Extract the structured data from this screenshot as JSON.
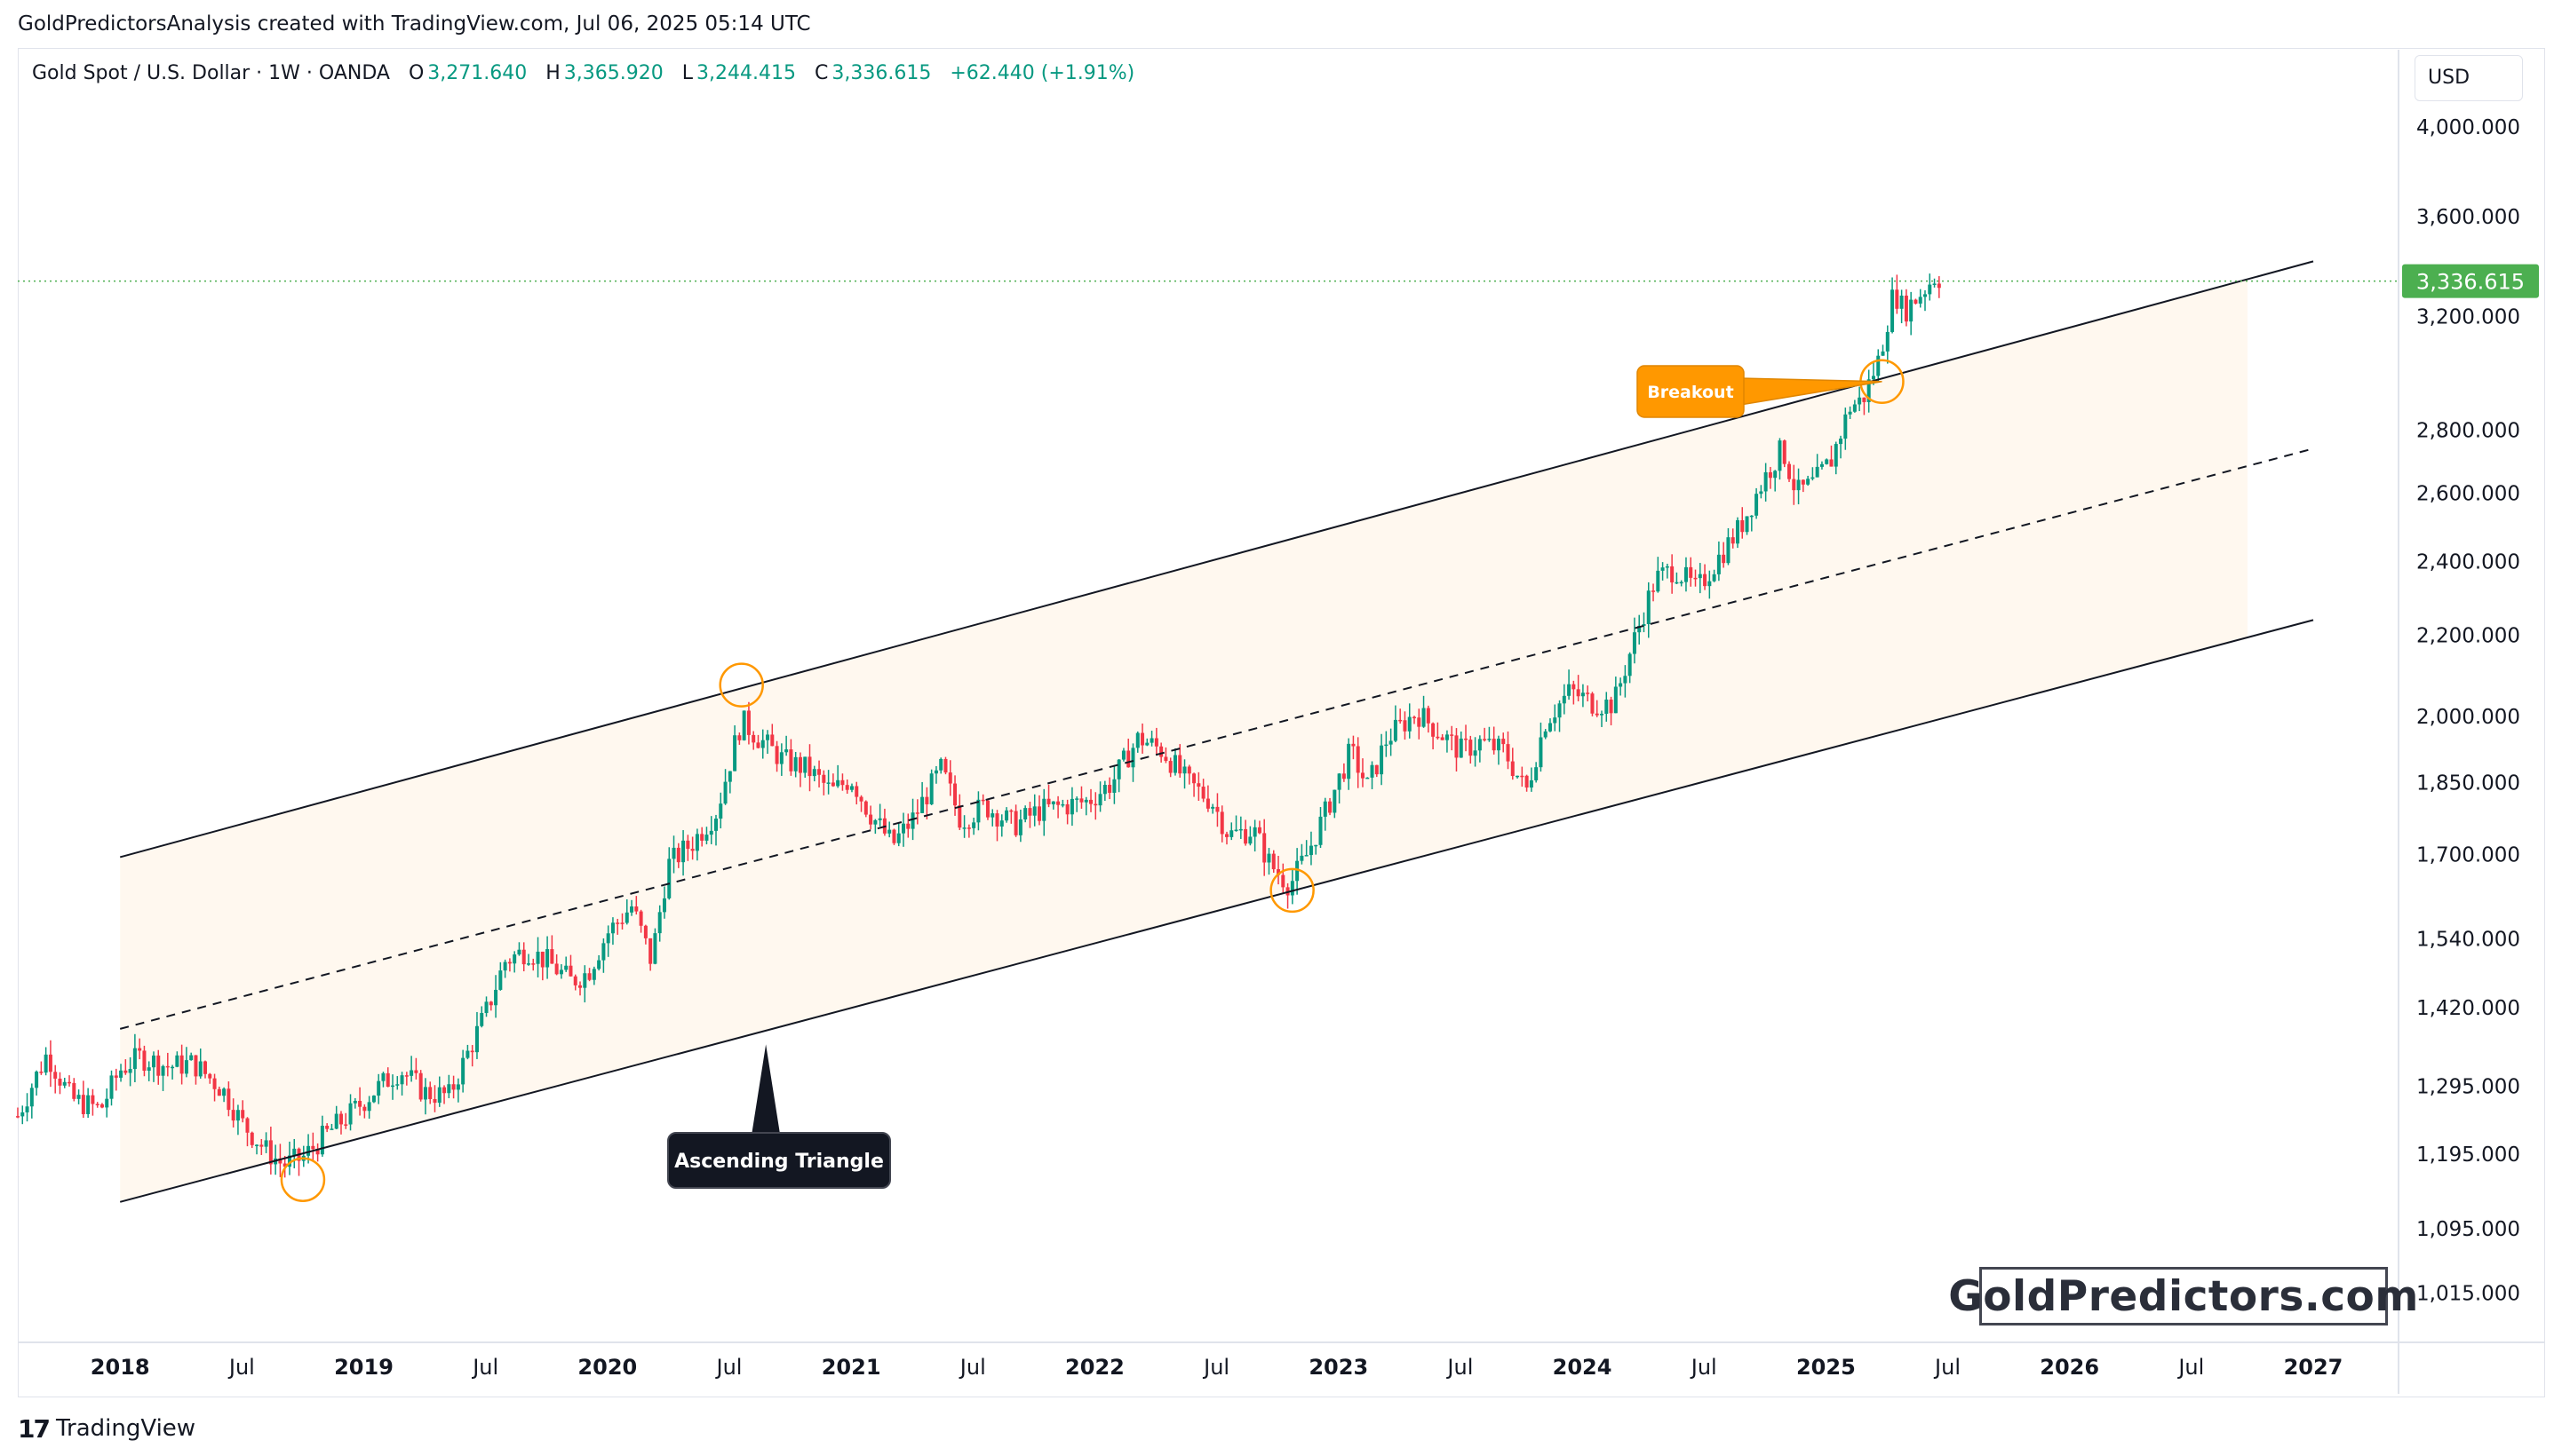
{
  "header": {
    "caption": "GoldPredictorsAnalysis created with TradingView.com, Jul 06, 2025 05:14 UTC"
  },
  "legend": {
    "symbol": "Gold Spot / U.S. Dollar · 1W · OANDA",
    "open_label": "O",
    "open": "3,271.640",
    "high_label": "H",
    "high": "3,365.920",
    "low_label": "L",
    "low": "3,244.415",
    "close_label": "C",
    "close": "3,336.615",
    "change": "+62.440 (+1.91%)"
  },
  "price_axis": {
    "currency": "USD",
    "current_price_label": "3,336.615",
    "current_price": 3336.615,
    "current_price_color": "#4caf50"
  },
  "brand": {
    "footer": "TradingView",
    "watermark": "GoldPredictors.com"
  },
  "colors": {
    "up": "#089981",
    "down": "#f23645",
    "channel_fill": "#fff8ef",
    "circle": "#ff9800",
    "breakout": "#ff9800",
    "triangle_label": "#131722"
  },
  "chart_data": {
    "type": "candlestick",
    "title": "",
    "y_scale": "log",
    "ylim": [
      960,
      4380
    ],
    "xlim": [
      2017.58,
      2027.35
    ],
    "y_ticks": [
      {
        "value": 4000,
        "label": "4,000.000"
      },
      {
        "value": 3600,
        "label": "3,600.000"
      },
      {
        "value": 3200,
        "label": "3,200.000"
      },
      {
        "value": 2800,
        "label": "2,800.000"
      },
      {
        "value": 2600,
        "label": "2,600.000"
      },
      {
        "value": 2400,
        "label": "2,400.000"
      },
      {
        "value": 2200,
        "label": "2,200.000"
      },
      {
        "value": 2000,
        "label": "2,000.000"
      },
      {
        "value": 1850,
        "label": "1,850.000"
      },
      {
        "value": 1700,
        "label": "1,700.000"
      },
      {
        "value": 1540,
        "label": "1,540.000"
      },
      {
        "value": 1420,
        "label": "1,420.000"
      },
      {
        "value": 1295,
        "label": "1,295.000"
      },
      {
        "value": 1195,
        "label": "1,195.000"
      },
      {
        "value": 1095,
        "label": "1,095.000"
      },
      {
        "value": 1015,
        "label": "1,015.000"
      }
    ],
    "x_ticks": [
      {
        "value": 2018.0,
        "label": "2018",
        "bold": true
      },
      {
        "value": 2018.5,
        "label": "Jul",
        "bold": false
      },
      {
        "value": 2019.0,
        "label": "2019",
        "bold": true
      },
      {
        "value": 2019.5,
        "label": "Jul",
        "bold": false
      },
      {
        "value": 2020.0,
        "label": "2020",
        "bold": true
      },
      {
        "value": 2020.5,
        "label": "Jul",
        "bold": false
      },
      {
        "value": 2021.0,
        "label": "2021",
        "bold": true
      },
      {
        "value": 2021.5,
        "label": "Jul",
        "bold": false
      },
      {
        "value": 2022.0,
        "label": "2022",
        "bold": true
      },
      {
        "value": 2022.5,
        "label": "Jul",
        "bold": false
      },
      {
        "value": 2023.0,
        "label": "2023",
        "bold": true
      },
      {
        "value": 2023.5,
        "label": "Jul",
        "bold": false
      },
      {
        "value": 2024.0,
        "label": "2024",
        "bold": true
      },
      {
        "value": 2024.5,
        "label": "Jul",
        "bold": false
      },
      {
        "value": 2025.0,
        "label": "2025",
        "bold": true
      },
      {
        "value": 2025.5,
        "label": "Jul",
        "bold": false
      },
      {
        "value": 2026.0,
        "label": "2026",
        "bold": true
      },
      {
        "value": 2026.5,
        "label": "Jul",
        "bold": false
      },
      {
        "value": 2027.0,
        "label": "2027",
        "bold": true
      }
    ],
    "price_path": [
      {
        "t": 2017.58,
        "p": 1250
      },
      {
        "t": 2017.7,
        "p": 1345
      },
      {
        "t": 2017.8,
        "p": 1275
      },
      {
        "t": 2017.92,
        "p": 1260
      },
      {
        "t": 2018.0,
        "p": 1320
      },
      {
        "t": 2018.08,
        "p": 1340
      },
      {
        "t": 2018.2,
        "p": 1325
      },
      {
        "t": 2018.3,
        "p": 1330
      },
      {
        "t": 2018.42,
        "p": 1290
      },
      {
        "t": 2018.5,
        "p": 1240
      },
      {
        "t": 2018.6,
        "p": 1200
      },
      {
        "t": 2018.67,
        "p": 1180
      },
      {
        "t": 2018.75,
        "p": 1190
      },
      {
        "t": 2018.85,
        "p": 1225
      },
      {
        "t": 2018.95,
        "p": 1255
      },
      {
        "t": 2019.05,
        "p": 1290
      },
      {
        "t": 2019.15,
        "p": 1320
      },
      {
        "t": 2019.25,
        "p": 1285
      },
      {
        "t": 2019.35,
        "p": 1280
      },
      {
        "t": 2019.42,
        "p": 1340
      },
      {
        "t": 2019.5,
        "p": 1410
      },
      {
        "t": 2019.58,
        "p": 1500
      },
      {
        "t": 2019.67,
        "p": 1520
      },
      {
        "t": 2019.75,
        "p": 1500
      },
      {
        "t": 2019.85,
        "p": 1465
      },
      {
        "t": 2019.92,
        "p": 1480
      },
      {
        "t": 2020.0,
        "p": 1550
      },
      {
        "t": 2020.1,
        "p": 1600
      },
      {
        "t": 2020.18,
        "p": 1500
      },
      {
        "t": 2020.25,
        "p": 1680
      },
      {
        "t": 2020.35,
        "p": 1725
      },
      {
        "t": 2020.45,
        "p": 1790
      },
      {
        "t": 2020.55,
        "p": 1990
      },
      {
        "t": 2020.62,
        "p": 1950
      },
      {
        "t": 2020.72,
        "p": 1900
      },
      {
        "t": 2020.82,
        "p": 1880
      },
      {
        "t": 2020.92,
        "p": 1830
      },
      {
        "t": 2021.0,
        "p": 1860
      },
      {
        "t": 2021.07,
        "p": 1790
      },
      {
        "t": 2021.17,
        "p": 1720
      },
      {
        "t": 2021.25,
        "p": 1770
      },
      {
        "t": 2021.37,
        "p": 1880
      },
      {
        "t": 2021.45,
        "p": 1770
      },
      {
        "t": 2021.55,
        "p": 1800
      },
      {
        "t": 2021.67,
        "p": 1760
      },
      {
        "t": 2021.77,
        "p": 1790
      },
      {
        "t": 2021.87,
        "p": 1800
      },
      {
        "t": 2021.97,
        "p": 1810
      },
      {
        "t": 2022.07,
        "p": 1850
      },
      {
        "t": 2022.18,
        "p": 1950
      },
      {
        "t": 2022.28,
        "p": 1920
      },
      {
        "t": 2022.38,
        "p": 1850
      },
      {
        "t": 2022.48,
        "p": 1810
      },
      {
        "t": 2022.55,
        "p": 1740
      },
      {
        "t": 2022.65,
        "p": 1750
      },
      {
        "t": 2022.72,
        "p": 1680
      },
      {
        "t": 2022.8,
        "p": 1640
      },
      {
        "t": 2022.87,
        "p": 1700
      },
      {
        "t": 2022.95,
        "p": 1790
      },
      {
        "t": 2023.05,
        "p": 1920
      },
      {
        "t": 2023.12,
        "p": 1840
      },
      {
        "t": 2023.2,
        "p": 1950
      },
      {
        "t": 2023.32,
        "p": 2010
      },
      {
        "t": 2023.42,
        "p": 1960
      },
      {
        "t": 2023.5,
        "p": 1920
      },
      {
        "t": 2023.58,
        "p": 1940
      },
      {
        "t": 2023.68,
        "p": 1920
      },
      {
        "t": 2023.77,
        "p": 1830
      },
      {
        "t": 2023.85,
        "p": 1990
      },
      {
        "t": 2023.95,
        "p": 2060
      },
      {
        "t": 2024.05,
        "p": 2030
      },
      {
        "t": 2024.13,
        "p": 2030
      },
      {
        "t": 2024.22,
        "p": 2200
      },
      {
        "t": 2024.3,
        "p": 2350
      },
      {
        "t": 2024.38,
        "p": 2380
      },
      {
        "t": 2024.47,
        "p": 2320
      },
      {
        "t": 2024.55,
        "p": 2400
      },
      {
        "t": 2024.65,
        "p": 2500
      },
      {
        "t": 2024.75,
        "p": 2650
      },
      {
        "t": 2024.82,
        "p": 2740
      },
      {
        "t": 2024.88,
        "p": 2600
      },
      {
        "t": 2024.95,
        "p": 2630
      },
      {
        "t": 2025.02,
        "p": 2700
      },
      {
        "t": 2025.1,
        "p": 2880
      },
      {
        "t": 2025.15,
        "p": 2900
      },
      {
        "t": 2025.22,
        "p": 3050
      },
      {
        "t": 2025.28,
        "p": 3300
      },
      {
        "t": 2025.32,
        "p": 3220
      },
      {
        "t": 2025.4,
        "p": 3300
      },
      {
        "t": 2025.45,
        "p": 3360
      },
      {
        "t": 2025.48,
        "p": 3337
      }
    ],
    "channel": {
      "t_start": 2018.0,
      "t_end": 2027.0,
      "upper": [
        1695,
        3415
      ],
      "lower": [
        1130,
        2240
      ],
      "mid": [
        1385,
        2740
      ]
    },
    "touch_points": [
      {
        "t": 2018.75,
        "p": 1160
      },
      {
        "t": 2020.55,
        "p": 2075
      },
      {
        "t": 2022.81,
        "p": 1630
      },
      {
        "t": 2025.23,
        "p": 2965
      }
    ],
    "annotations": [
      {
        "text": "Breakout",
        "style": "orange-callout",
        "t": 2025.23,
        "p": 2965
      },
      {
        "text": "Ascending Triangle",
        "style": "dark-callout",
        "t": 2020.65,
        "p": 1360
      }
    ]
  }
}
